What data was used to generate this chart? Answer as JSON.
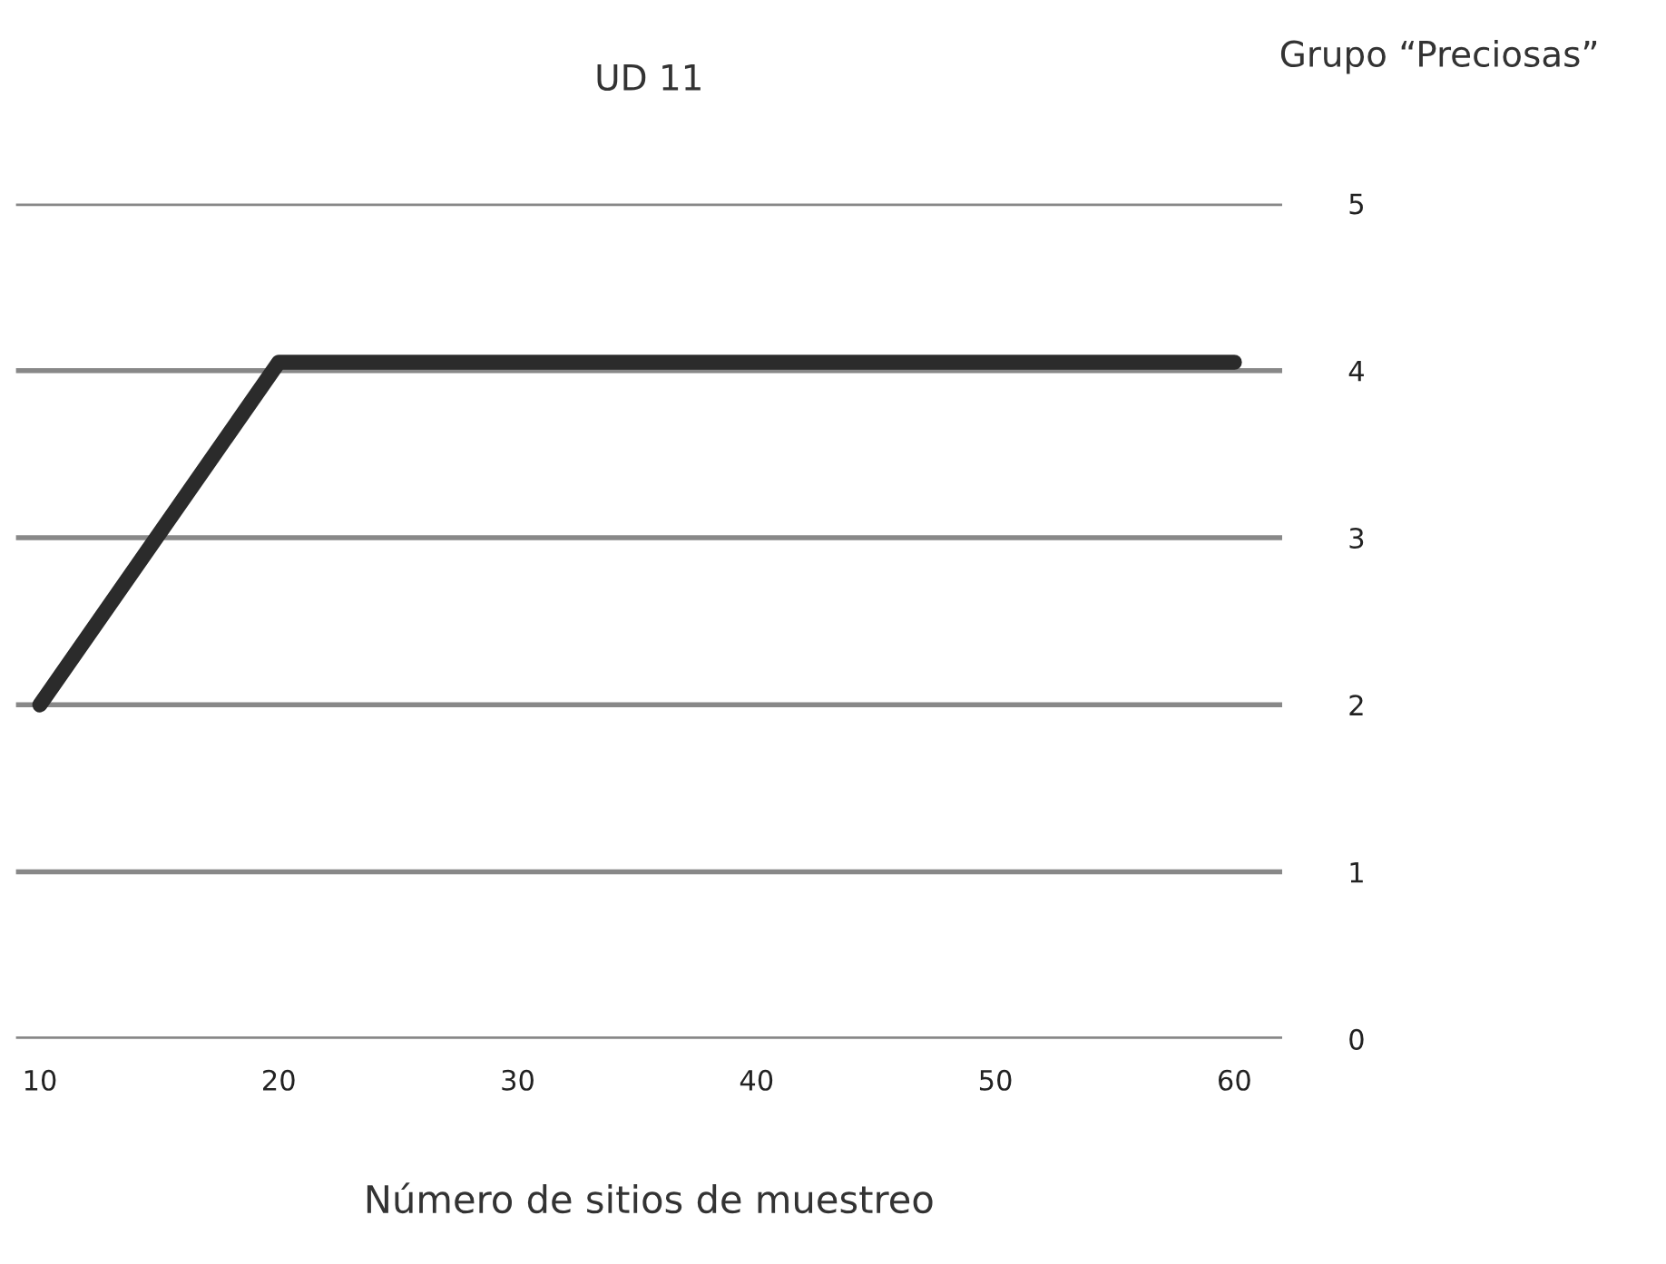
{
  "chart_data": {
    "type": "line",
    "title": "UD 11",
    "subtitle": "Grupo “Preciosas”",
    "xlabel": "Número de sitios de muestreo",
    "x": [
      10,
      20,
      30,
      40,
      50,
      60
    ],
    "series": [
      {
        "color": "#2b2b2b",
        "values": [
          2,
          4.05,
          4.05,
          4.05,
          4.05,
          4.05
        ]
      }
    ],
    "xlim": [
      9,
      62
    ],
    "xticks": [
      10,
      20,
      30,
      40,
      50,
      60
    ],
    "ylim": [
      0,
      5
    ],
    "yticks": [
      0,
      1,
      2,
      3,
      4,
      5
    ],
    "grid": "y",
    "marker": "none",
    "line_style": "solid"
  }
}
